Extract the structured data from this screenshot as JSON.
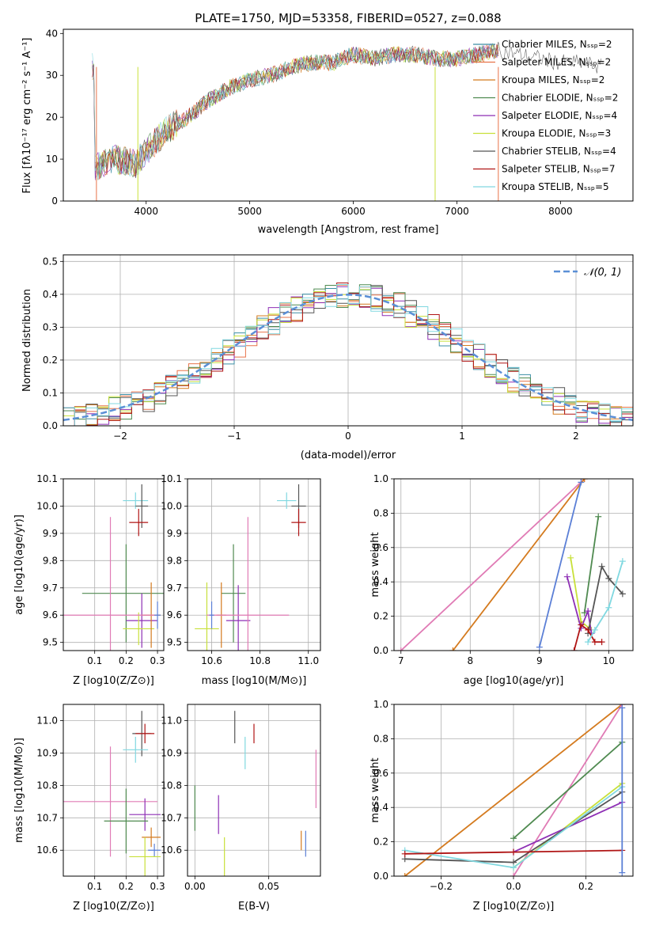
{
  "title": "PLATE=1750, MJD=53358, FIBERID=0527, z=0.088",
  "colors": {
    "Chabrier MILES": "#3b8ea5",
    "Salpeter MILES": "#e8734a",
    "Kroupa MILES": "#d47a1e",
    "Chabrier ELODIE": "#4f8a50",
    "Salpeter ELODIE": "#8e2fb5",
    "Kroupa ELODIE": "#c8e03a",
    "Chabrier STELIB": "#555555",
    "Salpeter STELIB": "#b01515",
    "Kroupa STELIB": "#80d8e0",
    "gaussian": "#5b8fd6",
    "pink": "#e07bb5",
    "blue": "#5b7fd6"
  },
  "chart_data": [
    {
      "type": "line",
      "title": "PLATE=1750, MJD=53358, FIBERID=0527, z=0.088",
      "xlabel": "wavelength [Angstrom, rest frame]",
      "ylabel": "Flux [fλ10⁻¹⁷ erg cm⁻² s⁻¹ A⁻¹]",
      "xlim": [
        3200,
        8700
      ],
      "ylim": [
        0,
        41
      ],
      "xticks": [
        "4000",
        "5000",
        "6000",
        "7000",
        "8000"
      ],
      "yticks": [
        "0",
        "10",
        "20",
        "30",
        "40"
      ],
      "grid": false,
      "legend_position": "top-right",
      "continuum": [
        [
          3500,
          8
        ],
        [
          3700,
          10
        ],
        [
          3900,
          9
        ],
        [
          4000,
          12
        ],
        [
          4200,
          17
        ],
        [
          4400,
          20
        ],
        [
          4600,
          24
        ],
        [
          4800,
          27
        ],
        [
          5000,
          29
        ],
        [
          5200,
          30
        ],
        [
          5400,
          32
        ],
        [
          5600,
          33
        ],
        [
          5800,
          33
        ],
        [
          6000,
          35
        ],
        [
          6200,
          34
        ],
        [
          6400,
          35
        ],
        [
          6600,
          35
        ],
        [
          6800,
          34
        ],
        [
          7000,
          34
        ],
        [
          7200,
          35
        ],
        [
          7400,
          36
        ],
        [
          7600,
          35
        ],
        [
          7800,
          34
        ],
        [
          8000,
          33
        ],
        [
          8200,
          33
        ],
        [
          8400,
          32
        ]
      ],
      "series": [
        {
          "name": "Chabrier MILES, N_SSP=2"
        },
        {
          "name": "Salpeter MILES, N_SSP=2"
        },
        {
          "name": "Kroupa MILES, N_SSP=2"
        },
        {
          "name": "Chabrier ELODIE, N_SSP=2"
        },
        {
          "name": "Salpeter ELODIE, N_SSP=4"
        },
        {
          "name": "Kroupa ELODIE, N_SSP=3"
        },
        {
          "name": "Chabrier STELIB, N_SSP=4"
        },
        {
          "name": "Salpeter STELIB, N_SSP=7"
        },
        {
          "name": "Kroupa STELIB, N_SSP=5"
        }
      ]
    },
    {
      "type": "bar",
      "xlabel": "(data-model)/error",
      "ylabel": "Normed distribution",
      "xlim": [
        -2.5,
        2.5
      ],
      "ylim": [
        0,
        0.52
      ],
      "xticks": [
        "−2",
        "−1",
        "0",
        "1",
        "2"
      ],
      "yticks": [
        "0.0",
        "0.1",
        "0.2",
        "0.3",
        "0.4",
        "0.5"
      ],
      "grid": true,
      "legend_position": "top-right",
      "legend": "𝒩(0, 1)",
      "note": "step histograms of residuals for the nine models plus a dashed standard normal curve"
    },
    {
      "type": "scatter",
      "xlabel": "Z [log10(Z/Z⊙)]",
      "ylabel": "age [log10(age/yr)]",
      "xlim": [
        0.0,
        0.32
      ],
      "ylim": [
        9.47,
        10.1
      ],
      "xticks": [
        "0.1",
        "0.2",
        "0.3"
      ],
      "yticks": [
        "9.5",
        "9.6",
        "9.7",
        "9.8",
        "9.9",
        "10.0",
        "10.1"
      ],
      "grid": true,
      "points": [
        {
          "model": "Kroupa STELIB",
          "x": 0.23,
          "xerr": 0.04,
          "y": 10.02,
          "yerr": 0.03
        },
        {
          "model": "Chabrier STELIB",
          "x": 0.25,
          "xerr": 0.02,
          "y": 10.0,
          "yerr": 0.08
        },
        {
          "model": "Salpeter STELIB",
          "x": 0.24,
          "xerr": 0.03,
          "y": 9.94,
          "yerr": 0.05
        },
        {
          "model": "Chabrier ELODIE",
          "x": 0.2,
          "xerr": 0.14,
          "y": 9.68,
          "yerr": 0.18
        },
        {
          "model": "Salpeter ELODIE",
          "x": 0.25,
          "xerr": 0.05,
          "y": 9.58,
          "yerr": 0.1
        },
        {
          "model": "Kroupa ELODIE",
          "x": 0.24,
          "xerr": 0.05,
          "y": 9.55,
          "yerr": 0.06
        },
        {
          "model": "Kroupa MILES",
          "x": 0.28,
          "xerr": 0.03,
          "y": 9.6,
          "yerr": 0.12
        },
        {
          "model": "pink",
          "x": 0.15,
          "xerr": 0.15,
          "y": 9.6,
          "yerr": 0.36
        },
        {
          "model": "blue",
          "x": 0.3,
          "xerr": 0.01,
          "y": 9.6,
          "yerr": 0.05
        }
      ]
    },
    {
      "type": "scatter",
      "xlabel": "mass [log10(M/M⊙)]",
      "xlim": [
        10.5,
        11.05
      ],
      "ylim": [
        9.47,
        10.1
      ],
      "xticks": [
        "10.6",
        "10.8",
        "11.0"
      ],
      "yticks": [
        "9.5",
        "9.6",
        "9.7",
        "9.8",
        "9.9",
        "10.0",
        "10.1"
      ],
      "grid": true,
      "points": [
        {
          "model": "Kroupa STELIB",
          "x": 10.91,
          "xerr": 0.04,
          "y": 10.02,
          "yerr": 0.03
        },
        {
          "model": "Chabrier STELIB",
          "x": 10.96,
          "xerr": 0.03,
          "y": 10.0,
          "yerr": 0.08
        },
        {
          "model": "Salpeter STELIB",
          "x": 10.96,
          "xerr": 0.03,
          "y": 9.94,
          "yerr": 0.05
        },
        {
          "model": "Chabrier ELODIE",
          "x": 10.69,
          "xerr": 0.05,
          "y": 9.68,
          "yerr": 0.18
        },
        {
          "model": "Salpeter ELODIE",
          "x": 10.71,
          "xerr": 0.05,
          "y": 9.58,
          "yerr": 0.13
        },
        {
          "model": "Kroupa ELODIE",
          "x": 10.58,
          "xerr": 0.05,
          "y": 9.55,
          "yerr": 0.17
        },
        {
          "model": "Kroupa MILES",
          "x": 10.64,
          "xerr": 0.02,
          "y": 9.6,
          "yerr": 0.12
        },
        {
          "model": "pink",
          "x": 10.75,
          "xerr": 0.17,
          "y": 9.6,
          "yerr": 0.36
        },
        {
          "model": "blue",
          "x": 10.6,
          "xerr": 0.01,
          "y": 9.6,
          "yerr": 0.05
        }
      ]
    },
    {
      "type": "line",
      "xlabel": "age [log10(age/yr)]",
      "ylabel": "mass weight",
      "xlim": [
        6.9,
        10.35
      ],
      "ylim": [
        0,
        1.0
      ],
      "xticks": [
        "7",
        "8",
        "9",
        "10"
      ],
      "yticks": [
        "0.0",
        "0.2",
        "0.4",
        "0.6",
        "0.8",
        "1.0"
      ],
      "grid": true,
      "series": [
        {
          "model": "pink",
          "x": [
            7.0,
            9.65
          ],
          "y": [
            0.0,
            1.0
          ]
        },
        {
          "model": "Kroupa MILES",
          "x": [
            7.75,
            9.65
          ],
          "y": [
            0.0,
            1.0
          ]
        },
        {
          "model": "blue",
          "x": [
            9.0,
            9.6
          ],
          "y": [
            0.02,
            0.98
          ]
        },
        {
          "model": "Chabrier ELODIE",
          "x": [
            9.65,
            9.85
          ],
          "y": [
            0.22,
            0.78
          ]
        },
        {
          "model": "Kroupa ELODIE",
          "x": [
            9.45,
            9.6,
            9.75
          ],
          "y": [
            0.54,
            0.17,
            0.12
          ]
        },
        {
          "model": "Salpeter ELODIE",
          "x": [
            9.4,
            9.6,
            9.7,
            9.75
          ],
          "y": [
            0.43,
            0.13,
            0.23,
            0.1
          ]
        },
        {
          "model": "Chabrier STELIB",
          "x": [
            9.7,
            9.9,
            10.0,
            10.2
          ],
          "y": [
            0.1,
            0.49,
            0.42,
            0.33
          ]
        },
        {
          "model": "Salpeter STELIB",
          "x": [
            9.5,
            9.6,
            9.7,
            9.8,
            9.9
          ],
          "y": [
            0.0,
            0.15,
            0.12,
            0.05,
            0.05
          ]
        },
        {
          "model": "Kroupa STELIB",
          "x": [
            9.7,
            9.8,
            10.0,
            10.2
          ],
          "y": [
            0.05,
            0.12,
            0.25,
            0.52
          ]
        }
      ]
    },
    {
      "type": "scatter",
      "xlabel": "Z [log10(Z/Z⊙)]",
      "ylabel": "mass [log10(M/M⊙)]",
      "xlim": [
        0.0,
        0.32
      ],
      "ylim": [
        10.52,
        11.05
      ],
      "xticks": [
        "0.1",
        "0.2",
        "0.3"
      ],
      "yticks": [
        "10.6",
        "10.7",
        "10.8",
        "10.9",
        "11.0"
      ],
      "grid": true,
      "points": [
        {
          "model": "Chabrier STELIB",
          "x": 0.25,
          "xerr": 0.03,
          "y": 10.96,
          "yerr": 0.07
        },
        {
          "model": "Salpeter STELIB",
          "x": 0.26,
          "xerr": 0.03,
          "y": 10.96,
          "yerr": 0.03
        },
        {
          "model": "Kroupa STELIB",
          "x": 0.23,
          "xerr": 0.04,
          "y": 10.91,
          "yerr": 0.04
        },
        {
          "model": "pink",
          "x": 0.15,
          "xerr": 0.15,
          "y": 10.75,
          "yerr": 0.17
        },
        {
          "model": "Salpeter ELODIE",
          "x": 0.26,
          "xerr": 0.05,
          "y": 10.71,
          "yerr": 0.05
        },
        {
          "model": "Chabrier ELODIE",
          "x": 0.2,
          "xerr": 0.07,
          "y": 10.69,
          "yerr": 0.1
        },
        {
          "model": "Kroupa MILES",
          "x": 0.28,
          "xerr": 0.03,
          "y": 10.64,
          "yerr": 0.03
        },
        {
          "model": "blue",
          "x": 0.29,
          "xerr": 0.02,
          "y": 10.6,
          "yerr": 0.02
        },
        {
          "model": "Kroupa ELODIE",
          "x": 0.26,
          "xerr": 0.05,
          "y": 10.58,
          "yerr": 0.06
        }
      ]
    },
    {
      "type": "scatter",
      "xlabel": "E(B-V)",
      "xlim": [
        -0.005,
        0.085
      ],
      "ylim": [
        10.52,
        11.05
      ],
      "xticks": [
        "0.00",
        "0.05"
      ],
      "yticks": [
        "10.6",
        "10.7",
        "10.8",
        "10.9",
        "11.0"
      ],
      "grid": true,
      "points": [
        {
          "model": "Chabrier STELIB",
          "x": 0.027,
          "y": 10.98,
          "yerr": 0.05
        },
        {
          "model": "Salpeter STELIB",
          "x": 0.04,
          "y": 10.96,
          "yerr": 0.03
        },
        {
          "model": "Kroupa STELIB",
          "x": 0.034,
          "y": 10.9,
          "yerr": 0.05
        },
        {
          "model": "Chabrier ELODIE",
          "x": 0.0,
          "y": 10.73,
          "yerr": 0.07
        },
        {
          "model": "Salpeter ELODIE",
          "x": 0.016,
          "y": 10.71,
          "yerr": 0.06
        },
        {
          "model": "Kroupa ELODIE",
          "x": 0.02,
          "y": 10.58,
          "yerr": 0.06
        },
        {
          "model": "Kroupa MILES",
          "x": 0.072,
          "y": 10.63,
          "yerr": 0.03
        },
        {
          "model": "blue",
          "x": 0.075,
          "y": 10.62,
          "yerr": 0.04
        },
        {
          "model": "pink",
          "x": 0.082,
          "y": 10.82,
          "yerr": 0.09
        }
      ]
    },
    {
      "type": "line",
      "xlabel": "Z [log10(Z/Z⊙)]",
      "ylabel": "mass weight",
      "xlim": [
        -0.33,
        0.33
      ],
      "ylim": [
        0,
        1.0
      ],
      "xticks": [
        "−0.2",
        "0.0",
        "0.2"
      ],
      "yticks": [
        "0.0",
        "0.2",
        "0.4",
        "0.6",
        "0.8",
        "1.0"
      ],
      "grid": true,
      "series": [
        {
          "model": "Kroupa MILES",
          "x": [
            -0.3,
            0.3
          ],
          "y": [
            0.0,
            1.0
          ]
        },
        {
          "model": "pink",
          "x": [
            0.0,
            0.3
          ],
          "y": [
            0.0,
            1.0
          ]
        },
        {
          "model": "Chabrier ELODIE",
          "x": [
            0.0,
            0.3
          ],
          "y": [
            0.22,
            0.78
          ]
        },
        {
          "model": "Kroupa ELODIE",
          "x": [
            0.0,
            0.3
          ],
          "y": [
            0.05,
            0.54
          ]
        },
        {
          "model": "Salpeter ELODIE",
          "x": [
            0.0,
            0.3
          ],
          "y": [
            0.14,
            0.43
          ]
        },
        {
          "model": "Chabrier STELIB",
          "x": [
            -0.3,
            0.0,
            0.3
          ],
          "y": [
            0.1,
            0.08,
            0.49
          ]
        },
        {
          "model": "Kroupa STELIB",
          "x": [
            -0.3,
            0.0,
            0.3
          ],
          "y": [
            0.15,
            0.05,
            0.52
          ]
        },
        {
          "model": "Salpeter STELIB",
          "x": [
            -0.3,
            0.0,
            0.3
          ],
          "y": [
            0.13,
            0.14,
            0.15
          ]
        },
        {
          "model": "blue",
          "x": [
            0.3,
            0.3
          ],
          "y": [
            0.02,
            0.98
          ]
        }
      ]
    }
  ]
}
